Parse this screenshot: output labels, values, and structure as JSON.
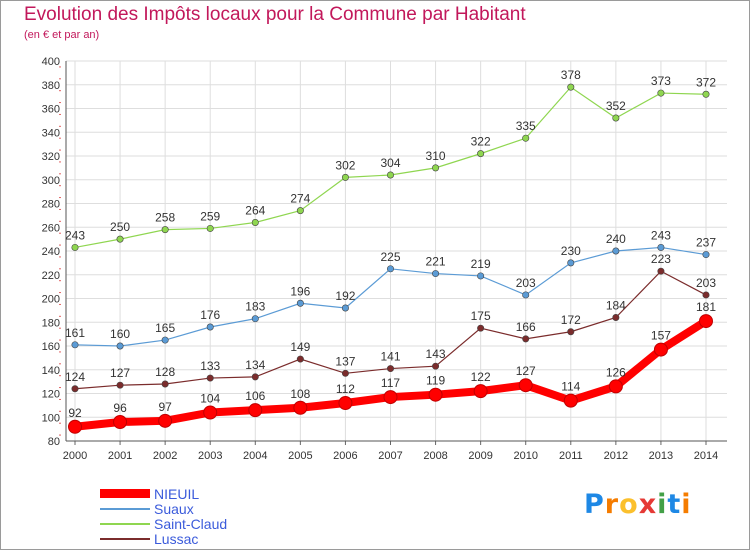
{
  "header": {
    "title": "Evolution des Impôts locaux pour la Commune par Habitant",
    "subtitle": "(en € et par an)"
  },
  "logo": {
    "text": "Proxiti",
    "letters": [
      "P",
      "r",
      "o",
      "x",
      "i",
      "t",
      "i"
    ],
    "colors": [
      "#1e88e5",
      "#f57c00",
      "#fbc02d",
      "#e53935",
      "#43a047",
      "#1e88e5",
      "#f57c00"
    ]
  },
  "chart_data": {
    "type": "line",
    "title": "Evolution des Impôts locaux pour la Commune par Habitant",
    "subtitle": "(en € et par an)",
    "xlabel": "",
    "ylabel": "",
    "x": [
      "2000",
      "2001",
      "2002",
      "2003",
      "2004",
      "2005",
      "2006",
      "2007",
      "2008",
      "2009",
      "2010",
      "2011",
      "2012",
      "2013",
      "2014"
    ],
    "ylim": [
      80,
      400
    ],
    "yticks": [
      80,
      100,
      120,
      140,
      160,
      180,
      200,
      220,
      240,
      260,
      280,
      300,
      320,
      340,
      360,
      380,
      400
    ],
    "grid": true,
    "legend_position": "bottom-left",
    "series": [
      {
        "name": "NIEUIL",
        "color": "#ff0000",
        "values": [
          92,
          96,
          97,
          104,
          106,
          108,
          112,
          117,
          119,
          122,
          127,
          114,
          126,
          157,
          181
        ],
        "emphasis": true
      },
      {
        "name": "Suaux",
        "color": "#5b9bd5",
        "values": [
          161,
          160,
          165,
          176,
          183,
          196,
          192,
          225,
          221,
          219,
          203,
          230,
          240,
          243,
          237
        ]
      },
      {
        "name": "Saint-Claud",
        "color": "#8fd650",
        "values": [
          243,
          250,
          258,
          259,
          264,
          274,
          302,
          304,
          310,
          322,
          335,
          378,
          352,
          373,
          372
        ]
      },
      {
        "name": "Lussac",
        "color": "#7b2c2c",
        "values": [
          124,
          127,
          128,
          133,
          134,
          149,
          137,
          141,
          143,
          175,
          166,
          172,
          184,
          223,
          203
        ]
      }
    ]
  }
}
